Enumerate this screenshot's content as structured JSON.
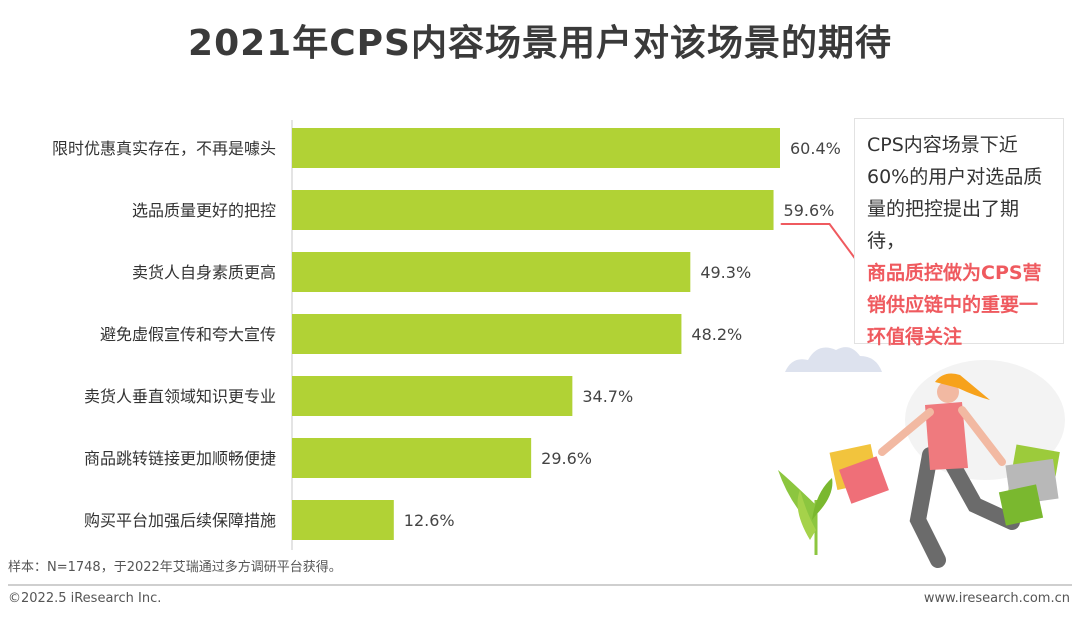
{
  "title": "2021年CPS内容场景用户对该场景的期待",
  "callout": {
    "line1": "CPS内容场景下近",
    "line2": "60%的用户对选品质",
    "line3": "量的把控提出了期待，",
    "highlight1": "商品质控做为CPS营",
    "highlight2": "销供应链中的重要一",
    "highlight3": "环值得关注"
  },
  "footer": {
    "sample": "样本：N=1748，于2022年艾瑞通过多方调研平台获得。",
    "copyright": "©2022.5 iResearch Inc.",
    "website": "www.iresearch.com.cn"
  },
  "colors": {
    "bar": "#b1d235",
    "highlight": "#ef5a5f",
    "underline": "#ef5a5f"
  },
  "chart_data": {
    "type": "bar",
    "orientation": "horizontal",
    "categories": [
      "限时优惠真实存在，不再是噱头",
      "选品质量更好的把控",
      "卖货人自身素质更高",
      "避免虚假宣传和夸大宣传",
      "卖货人垂直领域知识更专业",
      "商品跳转链接更加顺畅便捷",
      "购买平台加强后续保障措施"
    ],
    "values": [
      60.4,
      59.6,
      49.3,
      48.2,
      34.7,
      29.6,
      12.6
    ],
    "labels": [
      "60.4%",
      "59.6%",
      "49.3%",
      "48.2%",
      "34.7%",
      "29.6%",
      "12.6%"
    ],
    "highlighted_index": 1,
    "xlim": [
      0,
      60.4
    ],
    "grid": false
  }
}
